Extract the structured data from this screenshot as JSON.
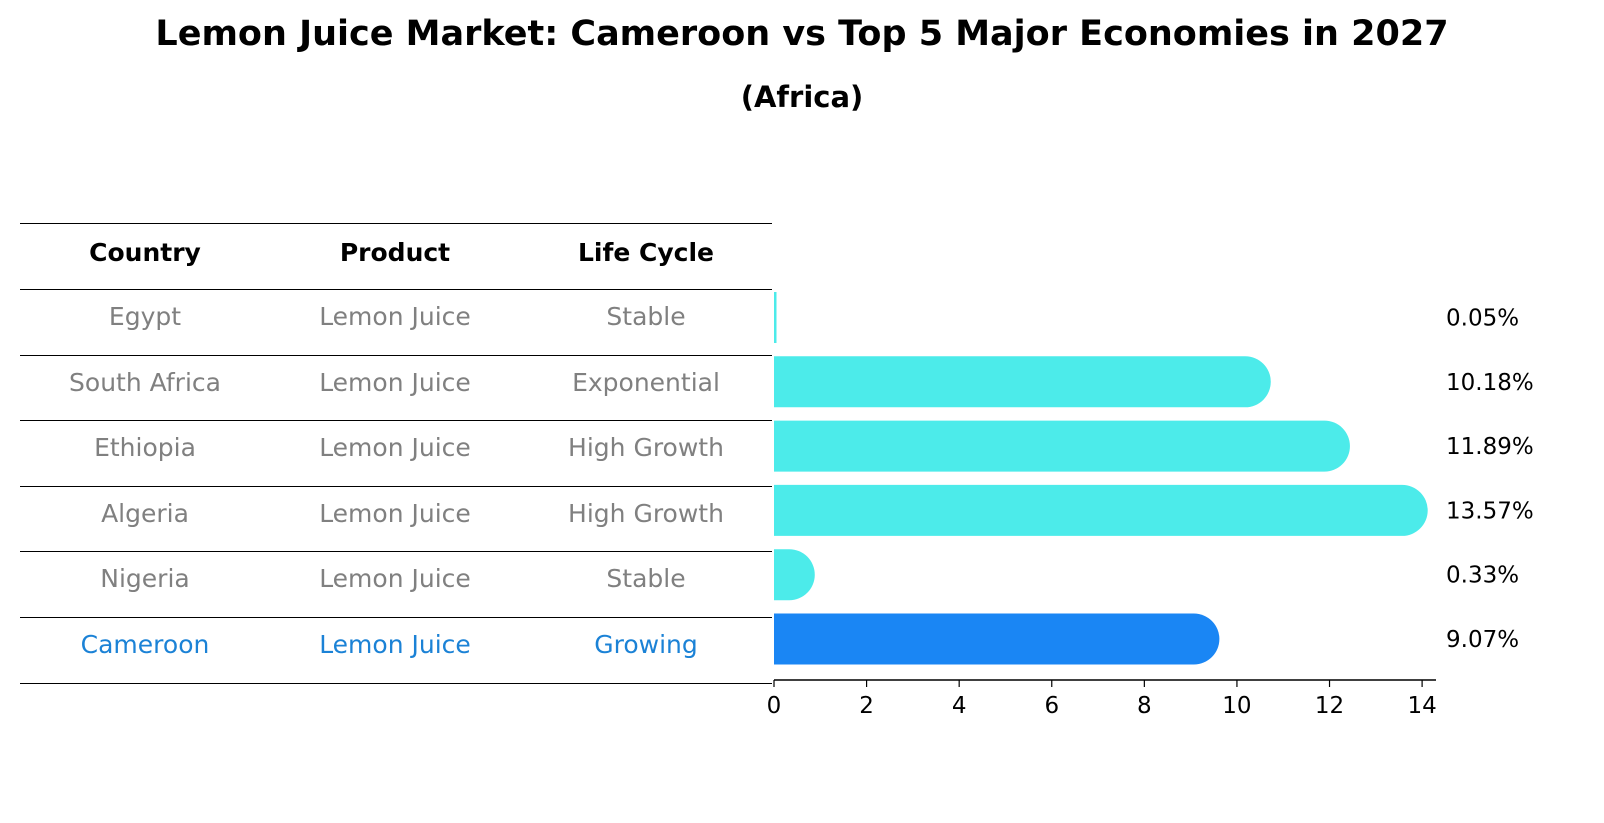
{
  "title": "Lemon Juice Market: Cameroon vs Top 5 Major Economies in 2027",
  "subtitle": "(Africa)",
  "table": {
    "headers": [
      "Country",
      "Product",
      "Life Cycle"
    ],
    "rows": [
      [
        "Egypt",
        "Lemon Juice",
        "Stable"
      ],
      [
        "South Africa",
        "Lemon Juice",
        "Exponential"
      ],
      [
        "Ethiopia",
        "Lemon Juice",
        "High Growth"
      ],
      [
        "Algeria",
        "Lemon Juice",
        "High Growth"
      ],
      [
        "Nigeria",
        "Lemon Juice",
        "Stable"
      ],
      [
        "Cameroon",
        "Lemon Juice",
        "Growing"
      ]
    ]
  },
  "colors": {
    "default_text": "#808080",
    "highlight_text": "#1b82d6",
    "bar": "#4cebea",
    "highlight_bar": "#1a86f4"
  },
  "chart_data": {
    "type": "bar",
    "orientation": "horizontal",
    "categories": [
      "Egypt",
      "South Africa",
      "Ethiopia",
      "Algeria",
      "Nigeria",
      "Cameroon"
    ],
    "values": [
      0.05,
      10.18,
      11.89,
      13.57,
      0.33,
      9.07
    ],
    "value_labels": [
      "0.05%",
      "10.18%",
      "11.89%",
      "13.57%",
      "0.33%",
      "9.07%"
    ],
    "highlight": "Cameroon",
    "xlim": [
      0,
      14.3
    ],
    "xticks": [
      0,
      2,
      4,
      6,
      8,
      10,
      12,
      14
    ],
    "xtick_labels": [
      "0",
      "2",
      "4",
      "6",
      "8",
      "10",
      "12",
      "14"
    ],
    "xlabel": "",
    "ylabel": ""
  }
}
